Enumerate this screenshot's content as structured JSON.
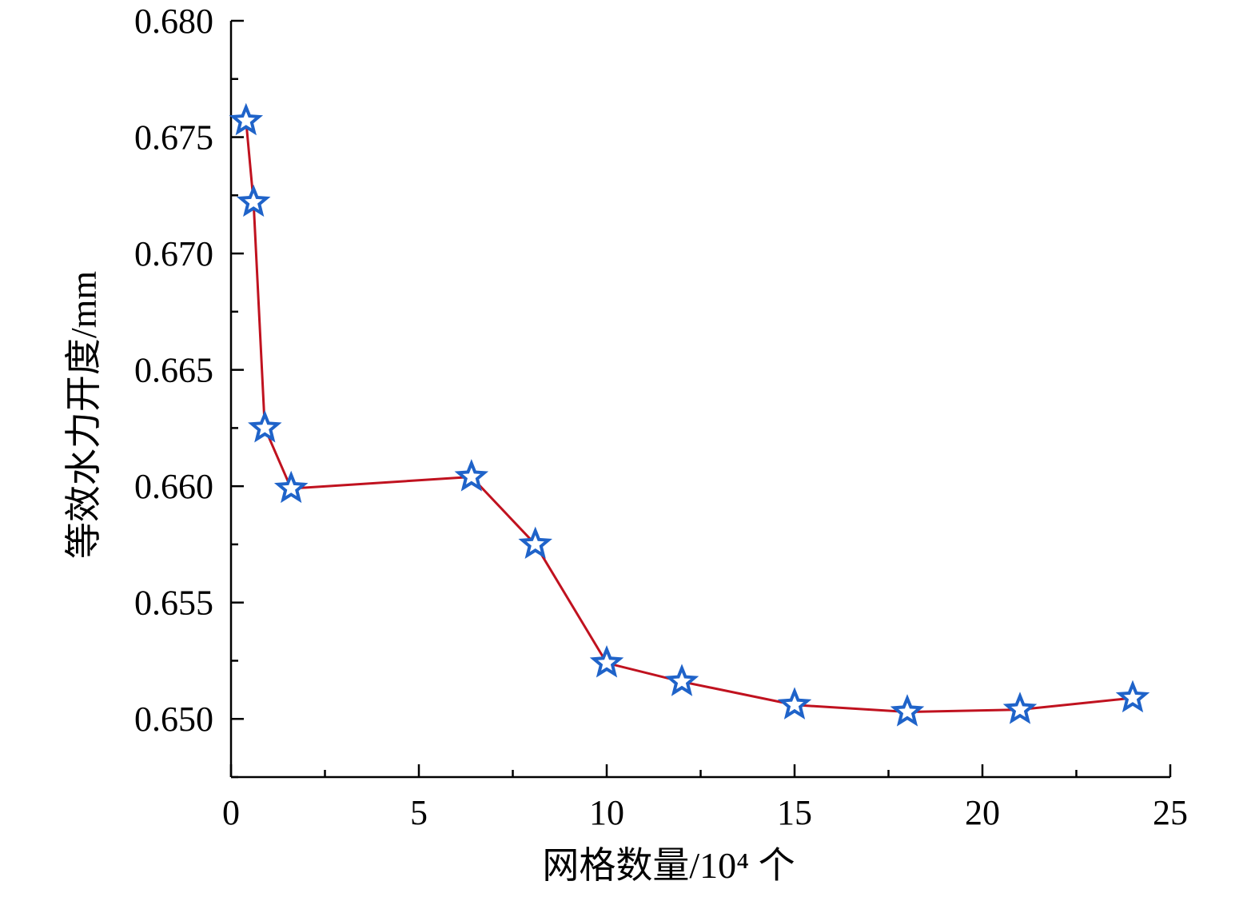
{
  "chart_data": {
    "type": "line",
    "xlabel": "网格数量/10⁴ 个",
    "ylabel": "等效水力开度/mm",
    "xlim": [
      0,
      25
    ],
    "ylim": [
      0.6475,
      0.68
    ],
    "x_ticks": [
      "0",
      "5",
      "10",
      "15",
      "20",
      "25"
    ],
    "y_ticks": [
      "0.650",
      "0.655",
      "0.660",
      "0.665",
      "0.670",
      "0.675",
      "0.680"
    ],
    "grid": false,
    "series": [
      {
        "line_color": "#c0121f",
        "marker": "star",
        "marker_color": "#1f63c9",
        "x": [
          0.4,
          0.6,
          0.9,
          1.6,
          6.4,
          8.1,
          10.0,
          12.0,
          15.0,
          18.0,
          21.0,
          24.0
        ],
        "y": [
          0.6757,
          0.6722,
          0.6625,
          0.6599,
          0.6604,
          0.6575,
          0.6524,
          0.6516,
          0.6506,
          0.6503,
          0.6504,
          0.6509
        ]
      }
    ]
  }
}
